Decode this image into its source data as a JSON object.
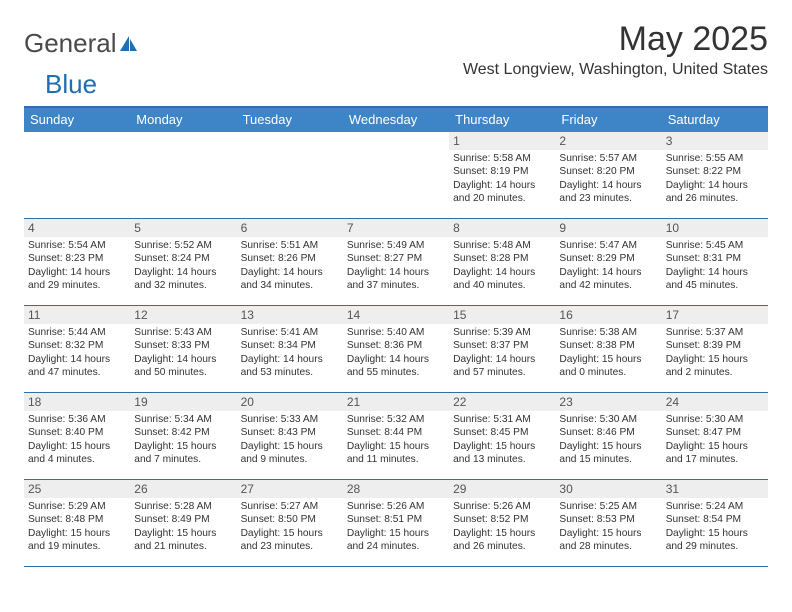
{
  "logo": {
    "general": "General",
    "blue": "Blue"
  },
  "title": "May 2025",
  "location": "West Longview, Washington, United States",
  "colors": {
    "header_bg": "#3d85c6",
    "header_text": "#ffffff",
    "border": "#2f6fa8",
    "daynum_bg": "#eeeeee",
    "text": "#333333",
    "logo_blue": "#1f6fb2",
    "logo_gray": "#4a4a4a"
  },
  "weekdays": [
    "Sunday",
    "Monday",
    "Tuesday",
    "Wednesday",
    "Thursday",
    "Friday",
    "Saturday"
  ],
  "calendar": {
    "rows": [
      [
        {
          "n": "",
          "sunrise": "",
          "sunset": "",
          "daylight": ""
        },
        {
          "n": "",
          "sunrise": "",
          "sunset": "",
          "daylight": ""
        },
        {
          "n": "",
          "sunrise": "",
          "sunset": "",
          "daylight": ""
        },
        {
          "n": "",
          "sunrise": "",
          "sunset": "",
          "daylight": ""
        },
        {
          "n": "1",
          "sunrise": "Sunrise: 5:58 AM",
          "sunset": "Sunset: 8:19 PM",
          "daylight": "Daylight: 14 hours and 20 minutes."
        },
        {
          "n": "2",
          "sunrise": "Sunrise: 5:57 AM",
          "sunset": "Sunset: 8:20 PM",
          "daylight": "Daylight: 14 hours and 23 minutes."
        },
        {
          "n": "3",
          "sunrise": "Sunrise: 5:55 AM",
          "sunset": "Sunset: 8:22 PM",
          "daylight": "Daylight: 14 hours and 26 minutes."
        }
      ],
      [
        {
          "n": "4",
          "sunrise": "Sunrise: 5:54 AM",
          "sunset": "Sunset: 8:23 PM",
          "daylight": "Daylight: 14 hours and 29 minutes."
        },
        {
          "n": "5",
          "sunrise": "Sunrise: 5:52 AM",
          "sunset": "Sunset: 8:24 PM",
          "daylight": "Daylight: 14 hours and 32 minutes."
        },
        {
          "n": "6",
          "sunrise": "Sunrise: 5:51 AM",
          "sunset": "Sunset: 8:26 PM",
          "daylight": "Daylight: 14 hours and 34 minutes."
        },
        {
          "n": "7",
          "sunrise": "Sunrise: 5:49 AM",
          "sunset": "Sunset: 8:27 PM",
          "daylight": "Daylight: 14 hours and 37 minutes."
        },
        {
          "n": "8",
          "sunrise": "Sunrise: 5:48 AM",
          "sunset": "Sunset: 8:28 PM",
          "daylight": "Daylight: 14 hours and 40 minutes."
        },
        {
          "n": "9",
          "sunrise": "Sunrise: 5:47 AM",
          "sunset": "Sunset: 8:29 PM",
          "daylight": "Daylight: 14 hours and 42 minutes."
        },
        {
          "n": "10",
          "sunrise": "Sunrise: 5:45 AM",
          "sunset": "Sunset: 8:31 PM",
          "daylight": "Daylight: 14 hours and 45 minutes."
        }
      ],
      [
        {
          "n": "11",
          "sunrise": "Sunrise: 5:44 AM",
          "sunset": "Sunset: 8:32 PM",
          "daylight": "Daylight: 14 hours and 47 minutes."
        },
        {
          "n": "12",
          "sunrise": "Sunrise: 5:43 AM",
          "sunset": "Sunset: 8:33 PM",
          "daylight": "Daylight: 14 hours and 50 minutes."
        },
        {
          "n": "13",
          "sunrise": "Sunrise: 5:41 AM",
          "sunset": "Sunset: 8:34 PM",
          "daylight": "Daylight: 14 hours and 53 minutes."
        },
        {
          "n": "14",
          "sunrise": "Sunrise: 5:40 AM",
          "sunset": "Sunset: 8:36 PM",
          "daylight": "Daylight: 14 hours and 55 minutes."
        },
        {
          "n": "15",
          "sunrise": "Sunrise: 5:39 AM",
          "sunset": "Sunset: 8:37 PM",
          "daylight": "Daylight: 14 hours and 57 minutes."
        },
        {
          "n": "16",
          "sunrise": "Sunrise: 5:38 AM",
          "sunset": "Sunset: 8:38 PM",
          "daylight": "Daylight: 15 hours and 0 minutes."
        },
        {
          "n": "17",
          "sunrise": "Sunrise: 5:37 AM",
          "sunset": "Sunset: 8:39 PM",
          "daylight": "Daylight: 15 hours and 2 minutes."
        }
      ],
      [
        {
          "n": "18",
          "sunrise": "Sunrise: 5:36 AM",
          "sunset": "Sunset: 8:40 PM",
          "daylight": "Daylight: 15 hours and 4 minutes."
        },
        {
          "n": "19",
          "sunrise": "Sunrise: 5:34 AM",
          "sunset": "Sunset: 8:42 PM",
          "daylight": "Daylight: 15 hours and 7 minutes."
        },
        {
          "n": "20",
          "sunrise": "Sunrise: 5:33 AM",
          "sunset": "Sunset: 8:43 PM",
          "daylight": "Daylight: 15 hours and 9 minutes."
        },
        {
          "n": "21",
          "sunrise": "Sunrise: 5:32 AM",
          "sunset": "Sunset: 8:44 PM",
          "daylight": "Daylight: 15 hours and 11 minutes."
        },
        {
          "n": "22",
          "sunrise": "Sunrise: 5:31 AM",
          "sunset": "Sunset: 8:45 PM",
          "daylight": "Daylight: 15 hours and 13 minutes."
        },
        {
          "n": "23",
          "sunrise": "Sunrise: 5:30 AM",
          "sunset": "Sunset: 8:46 PM",
          "daylight": "Daylight: 15 hours and 15 minutes."
        },
        {
          "n": "24",
          "sunrise": "Sunrise: 5:30 AM",
          "sunset": "Sunset: 8:47 PM",
          "daylight": "Daylight: 15 hours and 17 minutes."
        }
      ],
      [
        {
          "n": "25",
          "sunrise": "Sunrise: 5:29 AM",
          "sunset": "Sunset: 8:48 PM",
          "daylight": "Daylight: 15 hours and 19 minutes."
        },
        {
          "n": "26",
          "sunrise": "Sunrise: 5:28 AM",
          "sunset": "Sunset: 8:49 PM",
          "daylight": "Daylight: 15 hours and 21 minutes."
        },
        {
          "n": "27",
          "sunrise": "Sunrise: 5:27 AM",
          "sunset": "Sunset: 8:50 PM",
          "daylight": "Daylight: 15 hours and 23 minutes."
        },
        {
          "n": "28",
          "sunrise": "Sunrise: 5:26 AM",
          "sunset": "Sunset: 8:51 PM",
          "daylight": "Daylight: 15 hours and 24 minutes."
        },
        {
          "n": "29",
          "sunrise": "Sunrise: 5:26 AM",
          "sunset": "Sunset: 8:52 PM",
          "daylight": "Daylight: 15 hours and 26 minutes."
        },
        {
          "n": "30",
          "sunrise": "Sunrise: 5:25 AM",
          "sunset": "Sunset: 8:53 PM",
          "daylight": "Daylight: 15 hours and 28 minutes."
        },
        {
          "n": "31",
          "sunrise": "Sunrise: 5:24 AM",
          "sunset": "Sunset: 8:54 PM",
          "daylight": "Daylight: 15 hours and 29 minutes."
        }
      ]
    ]
  }
}
